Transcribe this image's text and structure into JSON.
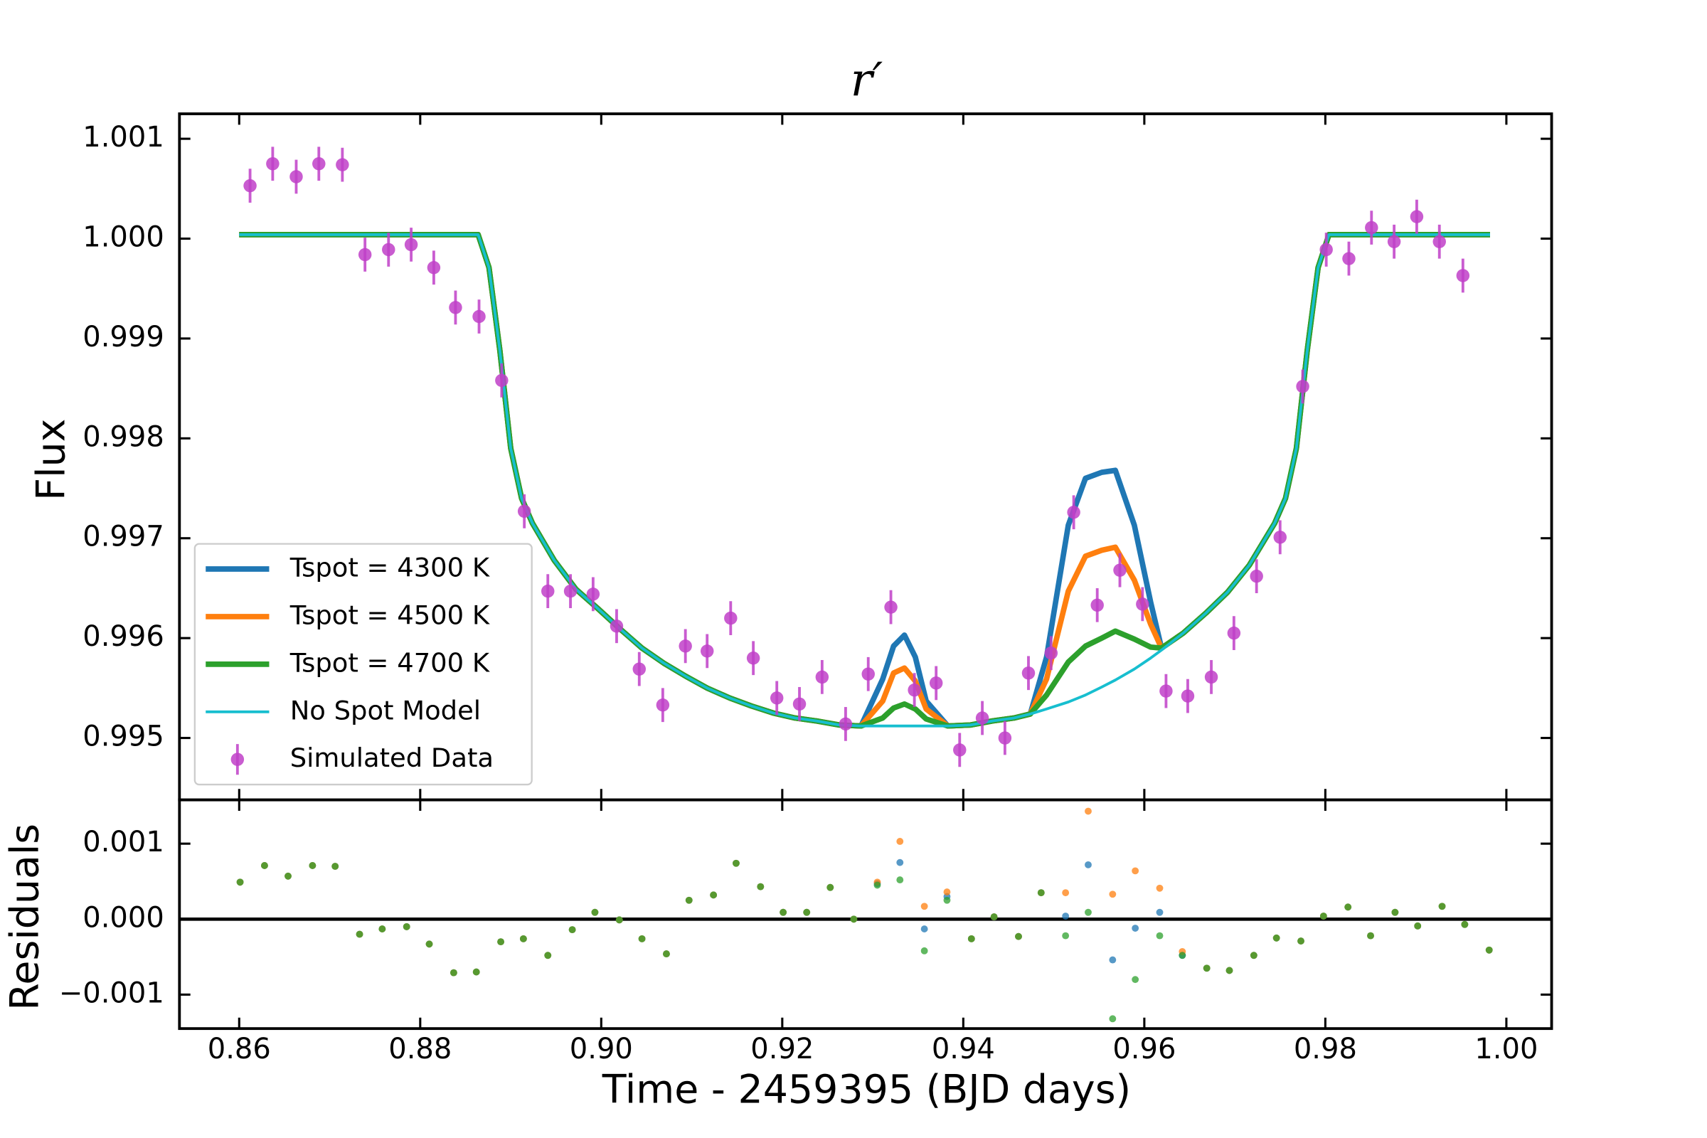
{
  "chart_data": [
    {
      "type": "line",
      "title": "r′",
      "ylabel": "Flux",
      "legend": "lower left",
      "xlim": [
        0.8534,
        1.005
      ],
      "ylim": [
        0.99438,
        1.00125
      ],
      "yticks": [
        0.995,
        0.996,
        0.997,
        0.998,
        0.999,
        {
          "value": 1,
          "label": "1.000"
        },
        1.001
      ],
      "x": [
        0.86,
        0.8864,
        0.8876,
        0.8888,
        0.89,
        0.8912,
        0.8924,
        0.8948,
        0.8972,
        0.8997,
        0.9021,
        0.9045,
        0.9069,
        0.9093,
        0.9117,
        0.9142,
        0.9166,
        0.919,
        0.9214,
        0.9238,
        0.9263,
        0.9287,
        0.9311,
        0.9323,
        0.9335,
        0.9347,
        0.9359,
        0.9383,
        0.9408,
        0.9432,
        0.9456,
        0.9474,
        0.9492,
        0.9516,
        0.9535,
        0.9553,
        0.9568,
        0.9589,
        0.9607,
        0.9619,
        0.9643,
        0.9668,
        0.9692,
        0.9716,
        0.9744,
        0.9756,
        0.9768,
        0.978,
        0.9792,
        0.9804,
        0.9982
      ],
      "series": [
        {
          "name": "Tspot = 4300 K",
          "color": "#1f77b4",
          "width": 5,
          "values": [
            1.00004,
            1.00004,
            0.99971,
            0.99888,
            0.9979,
            0.9974,
            0.99715,
            0.99678,
            0.99649,
            0.99629,
            0.99609,
            0.9959,
            0.99575,
            0.99562,
            0.9955,
            0.9954,
            0.99532,
            0.99525,
            0.9952,
            0.99517,
            0.99513,
            0.99512,
            0.99559,
            0.99592,
            0.99603,
            0.99581,
            0.99537,
            0.99512,
            0.99513,
            0.99517,
            0.9952,
            0.99524,
            0.99581,
            0.99713,
            0.9976,
            0.99766,
            0.99768,
            0.99713,
            0.99636,
            0.9959,
            0.99605,
            0.99625,
            0.99646,
            0.99673,
            0.99715,
            0.9974,
            0.9979,
            0.99888,
            0.99971,
            1.00004,
            1.00004
          ]
        },
        {
          "name": "Tspot = 4500 K",
          "color": "#ff7f0e",
          "width": 5,
          "values": [
            1.00004,
            1.00004,
            0.99971,
            0.99888,
            0.9979,
            0.9974,
            0.99715,
            0.99678,
            0.99649,
            0.99629,
            0.99609,
            0.9959,
            0.99575,
            0.99562,
            0.9955,
            0.9954,
            0.99532,
            0.99525,
            0.9952,
            0.99517,
            0.99513,
            0.99512,
            0.99537,
            0.99565,
            0.9957,
            0.99557,
            0.99529,
            0.99512,
            0.99513,
            0.99517,
            0.9952,
            0.99524,
            0.99559,
            0.99647,
            0.99682,
            0.99688,
            0.99691,
            0.99658,
            0.99614,
            0.9959,
            0.99605,
            0.99625,
            0.99646,
            0.99673,
            0.99715,
            0.9974,
            0.9979,
            0.99888,
            0.99971,
            1.00004,
            1.00004
          ]
        },
        {
          "name": "Tspot = 4700 K",
          "color": "#2ca02c",
          "width": 5,
          "values": [
            1.00004,
            1.00004,
            0.99971,
            0.99888,
            0.9979,
            0.9974,
            0.99715,
            0.99678,
            0.99649,
            0.99629,
            0.99609,
            0.9959,
            0.99575,
            0.99562,
            0.9955,
            0.9954,
            0.99532,
            0.99525,
            0.9952,
            0.99517,
            0.99513,
            0.99512,
            0.9952,
            0.9953,
            0.99534,
            0.99529,
            0.99519,
            0.99512,
            0.99513,
            0.99517,
            0.9952,
            0.99524,
            0.99543,
            0.99576,
            0.99592,
            0.996,
            0.99607,
            0.99599,
            0.99591,
            0.9959,
            0.99605,
            0.99625,
            0.99646,
            0.99673,
            0.99715,
            0.9974,
            0.9979,
            0.99888,
            0.99971,
            1.00004,
            1.00004
          ]
        },
        {
          "name": "No Spot Model",
          "color": "#17becf",
          "width": 2.5,
          "values": [
            1.00004,
            1.00004,
            0.99971,
            0.99888,
            0.9979,
            0.9974,
            0.99715,
            0.99678,
            0.99649,
            0.99629,
            0.99609,
            0.9959,
            0.99575,
            0.99562,
            0.9955,
            0.9954,
            0.99532,
            0.99525,
            0.9952,
            0.99517,
            0.99513,
            0.99512,
            0.99512,
            0.99512,
            0.99512,
            0.99512,
            0.99512,
            0.99512,
            0.99513,
            0.99517,
            0.9952,
            0.99524,
            0.99529,
            0.99536,
            0.99543,
            0.99551,
            0.99558,
            0.99569,
            0.9958,
            0.99588,
            0.99605,
            0.99625,
            0.99646,
            0.99673,
            0.99715,
            0.9974,
            0.9979,
            0.99888,
            0.99971,
            1.00004,
            1.00004
          ]
        }
      ],
      "errorbar": {
        "name": "Simulated Data",
        "color": "#c040c8",
        "yerr": 0.00017,
        "x": [
          0.8612,
          0.8637,
          0.8663,
          0.8688,
          0.8714,
          0.8739,
          0.8765,
          0.879,
          0.8815,
          0.8839,
          0.8865,
          0.889,
          0.8915,
          0.8941,
          0.8966,
          0.8991,
          0.9017,
          0.9042,
          0.9068,
          0.9093,
          0.9117,
          0.9143,
          0.9168,
          0.9194,
          0.9219,
          0.9244,
          0.927,
          0.9295,
          0.932,
          0.9346,
          0.937,
          0.9396,
          0.9421,
          0.9446,
          0.9472,
          0.9497,
          0.9522,
          0.9548,
          0.9573,
          0.9598,
          0.9624,
          0.9648,
          0.9674,
          0.9699,
          0.9724,
          0.975,
          0.9775,
          0.9801,
          0.9826,
          0.9851,
          0.9876,
          0.9901,
          0.9926,
          0.9952
        ],
        "values": [
          1.00053,
          1.00075,
          1.00062,
          1.00075,
          1.00074,
          0.99984,
          0.99989,
          0.99994,
          0.99971,
          0.99931,
          0.99922,
          0.99858,
          0.99727,
          0.99647,
          0.99647,
          0.99644,
          0.99612,
          0.99569,
          0.99533,
          0.99592,
          0.99587,
          0.9962,
          0.9958,
          0.9954,
          0.99534,
          0.99561,
          0.99514,
          0.99564,
          0.99631,
          0.99548,
          0.99555,
          0.99488,
          0.9952,
          0.995,
          0.99565,
          0.99585,
          0.99726,
          0.99633,
          0.99668,
          0.99634,
          0.99547,
          0.99542,
          0.99561,
          0.99605,
          0.99662,
          0.99701,
          0.99852,
          0.99989,
          0.9998,
          1.00011,
          0.99997,
          1.00022,
          0.99997,
          0.99963
        ]
      }
    },
    {
      "type": "scatter",
      "xlabel": "Time - 2459395 (BJD days)",
      "ylabel": "Residuals",
      "xlim": [
        0.8534,
        1.005
      ],
      "ylim": [
        -0.00145,
        0.00158
      ],
      "hline": 0,
      "xticks": [
        0.86,
        0.88,
        {
          "value": 0.9,
          "label": "0.90"
        },
        0.92,
        0.94,
        0.96,
        0.98,
        {
          "value": 1,
          "label": "1.00"
        }
      ],
      "yticks": [
        {
          "value": -0.001,
          "label": "−0.001"
        },
        {
          "value": 0,
          "label": "0.000"
        },
        0.001
      ],
      "x": [
        0.8601,
        0.8628,
        0.8654,
        0.8681,
        0.8706,
        0.8733,
        0.8758,
        0.8785,
        0.881,
        0.8837,
        0.8862,
        0.8889,
        0.8914,
        0.8941,
        0.8968,
        0.8993,
        0.902,
        0.9045,
        0.9072,
        0.9097,
        0.9124,
        0.9149,
        0.9176,
        0.9201,
        0.9227,
        0.9253,
        0.9279,
        0.9305,
        0.933,
        0.9357,
        0.9382,
        0.9409,
        0.9434,
        0.9461,
        0.9486,
        0.9513,
        0.9538,
        0.9565,
        0.959,
        0.9617,
        0.9642,
        0.9669,
        0.9694,
        0.9721,
        0.9746,
        0.9773,
        0.9798,
        0.9825,
        0.985,
        0.9877,
        0.9902,
        0.9929,
        0.9954,
        0.9981
      ],
      "series": [
        {
          "color": "#1f77b4",
          "values": [
            0.00049,
            0.00071,
            0.00057,
            0.00071,
            0.0007,
            -0.0002,
            -0.00013,
            -0.0001,
            -0.00033,
            -0.00071,
            -0.0007,
            -0.0003,
            -0.00026,
            -0.00048,
            -0.00014,
            9e-05,
            -1e-05,
            -0.00026,
            -0.00046,
            0.00025,
            0.00032,
            0.00074,
            0.00043,
            9e-05,
            9e-05,
            0.00042,
            0.0,
            0.00047,
            0.00075,
            -0.00013,
            0.0003,
            -0.00026,
            3e-05,
            -0.00023,
            0.00035,
            4e-05,
            0.00072,
            -0.00054,
            -0.00012,
            9e-05,
            -0.00048,
            -0.00065,
            -0.00068,
            -0.00048,
            -0.00025,
            -0.00029,
            4e-05,
            0.00016,
            -0.00022,
            9e-05,
            -9e-05,
            0.00017,
            -7e-05,
            -0.00041
          ]
        },
        {
          "color": "#ff7f0e",
          "values": [
            0.00049,
            0.00071,
            0.00057,
            0.00071,
            0.0007,
            -0.0002,
            -0.00013,
            -0.0001,
            -0.00033,
            -0.00071,
            -0.0007,
            -0.0003,
            -0.00026,
            -0.00048,
            -0.00014,
            9e-05,
            -1e-05,
            -0.00026,
            -0.00046,
            0.00025,
            0.00032,
            0.00074,
            0.00043,
            9e-05,
            9e-05,
            0.00042,
            0.0,
            0.00049,
            0.00103,
            0.00017,
            0.00036,
            -0.00026,
            3e-05,
            -0.00023,
            0.00035,
            0.00035,
            0.00143,
            0.00033,
            0.00064,
            0.00041,
            -0.00043,
            -0.00065,
            -0.00068,
            -0.00048,
            -0.00025,
            -0.00029,
            4e-05,
            0.00016,
            -0.00022,
            9e-05,
            -9e-05,
            0.00017,
            -7e-05,
            -0.00041
          ]
        },
        {
          "color": "#2ca02c",
          "values": [
            0.00049,
            0.00071,
            0.00057,
            0.00071,
            0.0007,
            -0.0002,
            -0.00013,
            -0.0001,
            -0.00033,
            -0.00071,
            -0.0007,
            -0.0003,
            -0.00026,
            -0.00048,
            -0.00014,
            9e-05,
            -1e-05,
            -0.00026,
            -0.00046,
            0.00025,
            0.00032,
            0.00074,
            0.00043,
            9e-05,
            9e-05,
            0.00042,
            0.0,
            0.00045,
            0.00052,
            -0.00042,
            0.00025,
            -0.00026,
            3e-05,
            -0.00023,
            0.00035,
            -0.00022,
            9e-05,
            -0.00132,
            -0.0008,
            -0.00022,
            -0.00048,
            -0.00065,
            -0.00068,
            -0.00048,
            -0.00025,
            -0.00029,
            4e-05,
            0.00016,
            -0.00022,
            9e-05,
            -9e-05,
            0.00017,
            -7e-05,
            -0.00041
          ]
        }
      ]
    }
  ]
}
